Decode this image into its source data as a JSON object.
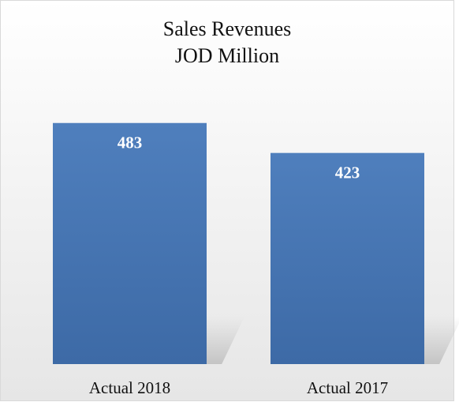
{
  "chart_data": {
    "type": "bar",
    "title": [
      "Sales Revenues",
      "JOD Million"
    ],
    "categories": [
      "Actual 2018",
      "Actual 2017"
    ],
    "values": [
      483,
      423
    ],
    "data_labels": [
      "483",
      "423"
    ],
    "xlabel": "",
    "ylabel": "",
    "ylim": [
      0,
      620
    ],
    "grid": false,
    "legend": "none",
    "colors": {
      "bar": "#4a7ab8",
      "bar_dark": "#3d6aa6",
      "background_top": "#ffffff",
      "background_bottom": "#e6e6e6"
    }
  }
}
